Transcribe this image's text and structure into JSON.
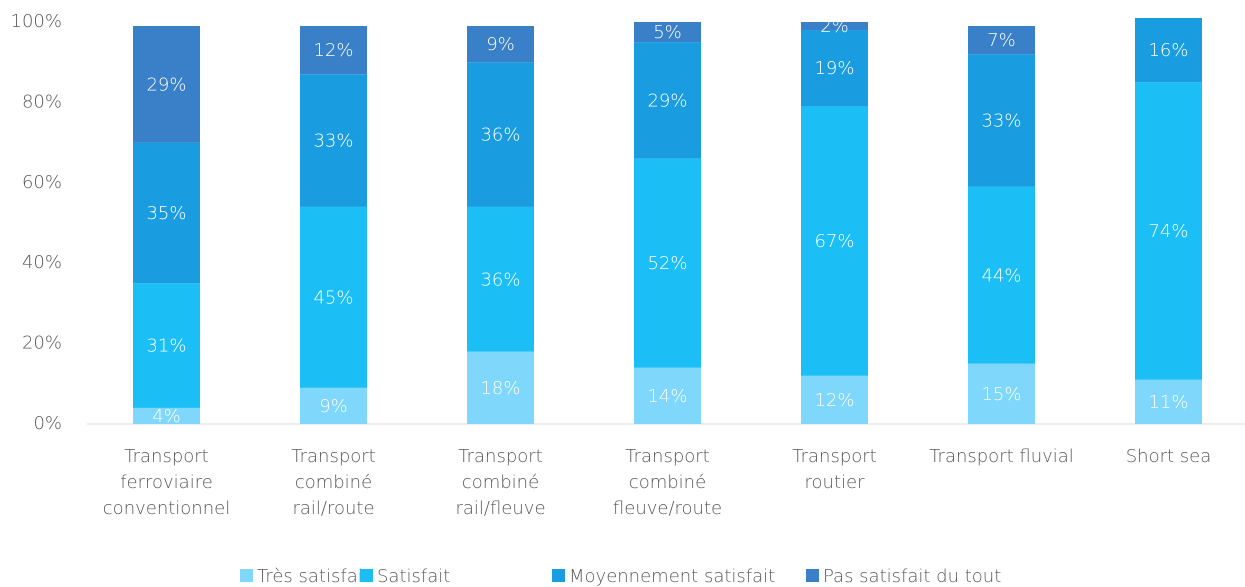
{
  "chart_data": {
    "type": "stacked_bar",
    "categories": [
      "Transport\nferroviaire\nconventionnel",
      "Transport\ncombiné\nrail/route",
      "Transport\ncombiné\nrail/fleuve",
      "Transport\ncombiné\nfleuve/route",
      "Transport\nroutier",
      "Transport fluvial",
      "Short sea"
    ],
    "series": [
      {
        "name": "Très satisfait",
        "color": "#7fd7fb",
        "values": [
          4,
          9,
          18,
          14,
          12,
          15,
          11
        ],
        "value_labels": [
          "4%",
          "9%",
          "18%",
          "14%",
          "12%",
          "15%",
          "11%"
        ]
      },
      {
        "name": "Satisfait",
        "color": "#1bbff5",
        "values": [
          31,
          45,
          36,
          52,
          67,
          44,
          74
        ],
        "value_labels": [
          "31%",
          "45%",
          "36%",
          "52%",
          "67%",
          "44%",
          "74%"
        ]
      },
      {
        "name": "Moyennement satisfait",
        "color": "#1a9de0",
        "values": [
          35,
          33,
          36,
          29,
          19,
          33,
          16
        ],
        "value_labels": [
          "35%",
          "33%",
          "36%",
          "29%",
          "19%",
          "33%",
          "16%"
        ]
      },
      {
        "name": "Pas satisfait du tout",
        "color": "#3a80c8",
        "values": [
          29,
          12,
          9,
          5,
          2,
          7,
          null
        ],
        "value_labels": [
          "29%",
          "12%",
          "9%",
          "5%",
          "2%",
          "7%",
          null
        ]
      }
    ],
    "ylim": [
      0,
      100
    ],
    "yticks": [
      {
        "value": 0,
        "label": "0%"
      },
      {
        "value": 20,
        "label": "20%"
      },
      {
        "value": 40,
        "label": "40%"
      },
      {
        "value": 60,
        "label": "60%"
      },
      {
        "value": 80,
        "label": "80%"
      },
      {
        "value": 100,
        "label": "100%"
      }
    ],
    "legend": "bottom"
  }
}
